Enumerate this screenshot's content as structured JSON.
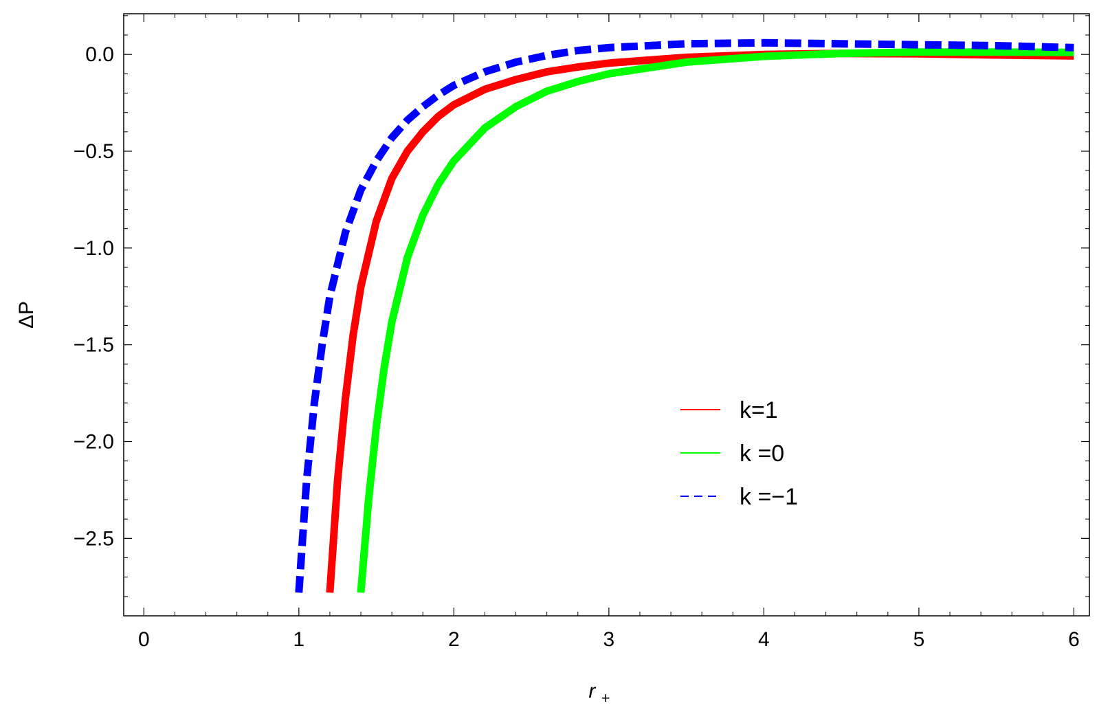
{
  "chart_data": {
    "type": "line",
    "title": "",
    "xlabel": "r",
    "xlabel_sub": "+",
    "ylabel": "ΔP",
    "xlim": [
      -0.13,
      6.1
    ],
    "ylim": [
      -2.9,
      0.21
    ],
    "x_ticks": [
      0,
      1,
      2,
      3,
      4,
      5,
      6
    ],
    "x_tick_labels": [
      "0",
      "1",
      "2",
      "3",
      "4",
      "5",
      "6"
    ],
    "x_minor_step": 0.2,
    "y_ticks": [
      0.0,
      -0.5,
      -1.0,
      -1.5,
      -2.0,
      -2.5
    ],
    "y_tick_labels": [
      "0.0",
      "−0.5",
      "−1.0",
      "−1.5",
      "−2.0",
      "−2.5"
    ],
    "y_minor_step": 0.1,
    "grid": false,
    "legend_position": "center-right",
    "series": [
      {
        "name": "k=1",
        "color": "#ff0000",
        "dash": "solid",
        "points": [
          [
            1.2,
            -2.78
          ],
          [
            1.25,
            -2.2
          ],
          [
            1.3,
            -1.78
          ],
          [
            1.35,
            -1.45
          ],
          [
            1.4,
            -1.2
          ],
          [
            1.5,
            -0.86
          ],
          [
            1.6,
            -0.64
          ],
          [
            1.7,
            -0.5
          ],
          [
            1.8,
            -0.4
          ],
          [
            1.9,
            -0.32
          ],
          [
            2.0,
            -0.26
          ],
          [
            2.2,
            -0.18
          ],
          [
            2.4,
            -0.13
          ],
          [
            2.6,
            -0.09
          ],
          [
            2.8,
            -0.065
          ],
          [
            3.0,
            -0.045
          ],
          [
            3.5,
            -0.015
          ],
          [
            4.0,
            0.0
          ],
          [
            4.5,
            0.005
          ],
          [
            5.0,
            0.003
          ],
          [
            5.5,
            -0.003
          ],
          [
            6.0,
            -0.008
          ]
        ]
      },
      {
        "name": "k =0",
        "color": "#00ff00",
        "dash": "solid",
        "points": [
          [
            1.4,
            -2.78
          ],
          [
            1.45,
            -2.3
          ],
          [
            1.5,
            -1.92
          ],
          [
            1.55,
            -1.62
          ],
          [
            1.6,
            -1.38
          ],
          [
            1.7,
            -1.05
          ],
          [
            1.8,
            -0.83
          ],
          [
            1.9,
            -0.67
          ],
          [
            2.0,
            -0.55
          ],
          [
            2.2,
            -0.38
          ],
          [
            2.4,
            -0.27
          ],
          [
            2.6,
            -0.19
          ],
          [
            2.8,
            -0.14
          ],
          [
            3.0,
            -0.1
          ],
          [
            3.5,
            -0.04
          ],
          [
            4.0,
            -0.01
          ],
          [
            4.5,
            0.005
          ],
          [
            5.0,
            0.012
          ],
          [
            5.5,
            0.012
          ],
          [
            6.0,
            0.01
          ]
        ]
      },
      {
        "name": "k =−1",
        "color": "#0000ff",
        "dash": "dashed",
        "points": [
          [
            1.0,
            -2.78
          ],
          [
            1.05,
            -2.2
          ],
          [
            1.1,
            -1.8
          ],
          [
            1.15,
            -1.5
          ],
          [
            1.2,
            -1.25
          ],
          [
            1.3,
            -0.92
          ],
          [
            1.4,
            -0.7
          ],
          [
            1.5,
            -0.55
          ],
          [
            1.6,
            -0.43
          ],
          [
            1.7,
            -0.34
          ],
          [
            1.8,
            -0.27
          ],
          [
            1.9,
            -0.21
          ],
          [
            2.0,
            -0.16
          ],
          [
            2.2,
            -0.09
          ],
          [
            2.4,
            -0.04
          ],
          [
            2.6,
            -0.005
          ],
          [
            2.8,
            0.02
          ],
          [
            3.0,
            0.035
          ],
          [
            3.5,
            0.055
          ],
          [
            4.0,
            0.06
          ],
          [
            4.5,
            0.055
          ],
          [
            5.0,
            0.05
          ],
          [
            5.5,
            0.045
          ],
          [
            6.0,
            0.035
          ]
        ]
      }
    ]
  }
}
